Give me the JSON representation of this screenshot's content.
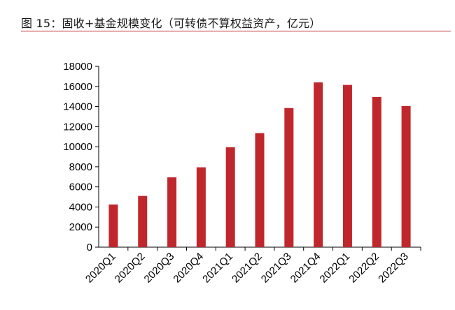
{
  "figure": {
    "title": "图 15：固收+基金规模变化（可转债不算权益资产，亿元）"
  },
  "chart_data": {
    "type": "bar",
    "title": "图 15：固收+基金规模变化（可转债不算权益资产，亿元）",
    "xlabel": "",
    "ylabel": "",
    "categories": [
      "2020Q1",
      "2020Q2",
      "2020Q3",
      "2020Q4",
      "2021Q1",
      "2021Q2",
      "2021Q3",
      "2021Q4",
      "2022Q1",
      "2022Q2",
      "2022Q3"
    ],
    "values": [
      4250,
      5100,
      6950,
      7950,
      9950,
      11350,
      13850,
      16400,
      16150,
      14950,
      14050
    ],
    "ylim": [
      0,
      18000
    ],
    "yticks": [
      0,
      2000,
      4000,
      6000,
      8000,
      10000,
      12000,
      14000,
      16000,
      18000
    ],
    "grid": false,
    "legend": "none",
    "bar_color": "#c0272d"
  }
}
